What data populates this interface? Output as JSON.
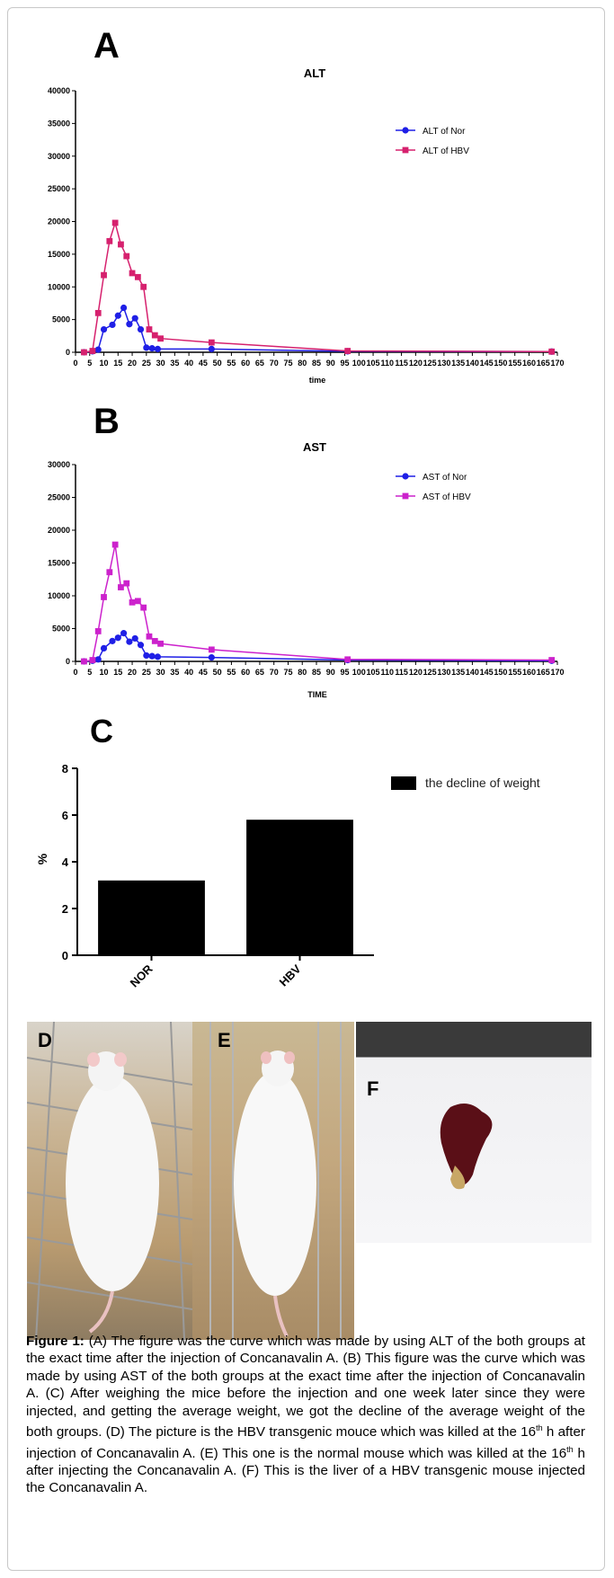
{
  "chart_data": [
    {
      "type": "line",
      "panel": "A",
      "title": "ALT",
      "xlabel": "time",
      "ylabel": "",
      "ylim": [
        0,
        40000
      ],
      "y_ticks": [
        "0",
        "5000",
        "10000",
        "15000",
        "20000",
        "25000",
        "30000",
        "35000",
        "40000"
      ],
      "x_ticks": [
        "0",
        "5",
        "10",
        "15",
        "20",
        "25",
        "30",
        "35",
        "40",
        "45",
        "50",
        "55",
        "60",
        "65",
        "70",
        "75",
        "80",
        "85",
        "90",
        "95",
        "100",
        "105",
        "110",
        "115",
        "120",
        "125",
        "130",
        "135",
        "140",
        "145",
        "150",
        "155",
        "160",
        "165",
        "170"
      ],
      "legend_position": "top-right",
      "series": [
        {
          "name": "ALT of Nor",
          "color": "#1f1fe6",
          "marker": "circle",
          "x": [
            3,
            6,
            8,
            10,
            13,
            15,
            17,
            19,
            21,
            23,
            25,
            27,
            29,
            48,
            96,
            168
          ],
          "y": [
            0,
            150,
            400,
            3500,
            4200,
            5600,
            6800,
            4300,
            5200,
            3500,
            700,
            600,
            500,
            500,
            150,
            100
          ]
        },
        {
          "name": "ALT of HBV",
          "color": "#d6216e",
          "marker": "square",
          "x": [
            3,
            6,
            8,
            10,
            12,
            14,
            16,
            18,
            20,
            22,
            24,
            26,
            28,
            30,
            48,
            96,
            168
          ],
          "y": [
            0,
            200,
            6000,
            11800,
            17000,
            19800,
            16500,
            14700,
            12100,
            11500,
            10000,
            3500,
            2600,
            2100,
            1500,
            200,
            100
          ]
        }
      ]
    },
    {
      "type": "line",
      "panel": "B",
      "title": "AST",
      "xlabel": "TIME",
      "ylabel": "",
      "ylim": [
        0,
        30000
      ],
      "y_ticks": [
        "0",
        "5000",
        "10000",
        "15000",
        "20000",
        "25000",
        "30000"
      ],
      "x_ticks": [
        "0",
        "5",
        "10",
        "15",
        "20",
        "25",
        "30",
        "35",
        "40",
        "45",
        "50",
        "55",
        "60",
        "65",
        "70",
        "75",
        "80",
        "85",
        "90",
        "95",
        "100",
        "105",
        "110",
        "115",
        "120",
        "125",
        "130",
        "135",
        "140",
        "145",
        "150",
        "155",
        "160",
        "165",
        "170"
      ],
      "legend_position": "top-right",
      "series": [
        {
          "name": "AST of Nor",
          "color": "#1f1fe6",
          "marker": "circle",
          "x": [
            3,
            6,
            8,
            10,
            13,
            15,
            17,
            19,
            21,
            23,
            25,
            27,
            29,
            48,
            96,
            168
          ],
          "y": [
            0,
            100,
            300,
            2000,
            3100,
            3600,
            4300,
            3000,
            3500,
            2500,
            900,
            800,
            700,
            600,
            200,
            100
          ]
        },
        {
          "name": "AST of HBV",
          "color": "#cc22cc",
          "marker": "square",
          "x": [
            3,
            6,
            8,
            10,
            12,
            14,
            16,
            18,
            20,
            22,
            24,
            26,
            28,
            30,
            48,
            96,
            168
          ],
          "y": [
            0,
            200,
            4600,
            9800,
            13600,
            17800,
            11300,
            11900,
            9000,
            9200,
            8200,
            3800,
            3100,
            2700,
            1800,
            300,
            200
          ]
        }
      ]
    },
    {
      "type": "bar",
      "panel": "C",
      "title": "",
      "categories": [
        "NOR",
        "HBV"
      ],
      "values": [
        3.2,
        5.8
      ],
      "ylabel": "%",
      "xlabel": "",
      "ylim": [
        0,
        8
      ],
      "y_ticks": [
        "0",
        "2",
        "4",
        "6",
        "8"
      ],
      "legend": "the decline of weight",
      "legend_position": "top-right",
      "color": "#000000"
    }
  ],
  "photos": [
    {
      "label": "D",
      "icon": "white-mouse-photo"
    },
    {
      "label": "E",
      "icon": "white-mouse-photo"
    },
    {
      "label": "F",
      "icon": "liver-photo"
    }
  ],
  "caption": {
    "label": "Figure 1:",
    "before_sup1": " (A) The figure was the curve which was made by using ALT of the both groups at the exact time after the injection of Concanavalin A. (B) This figure was the curve which was made by using AST of the both groups at the exact time after the injection of Concanavalin A. (C) After weighing the mice before the injection and one week later since they were injected, and getting the average weight, we got the decline of the average weight of the both groups. (D) The picture is the HBV transgenic mouce which was killed at the 16",
    "sup1": "th",
    "between_sups": " h after injection of Concanavalin A. (E) This one is the normal mouse which was killed at the 16",
    "sup2": "th",
    "after_sup2": " h after injecting the Concanavalin A. (F) This is the liver of a HBV transgenic mouse injected the Concanavalin A."
  }
}
